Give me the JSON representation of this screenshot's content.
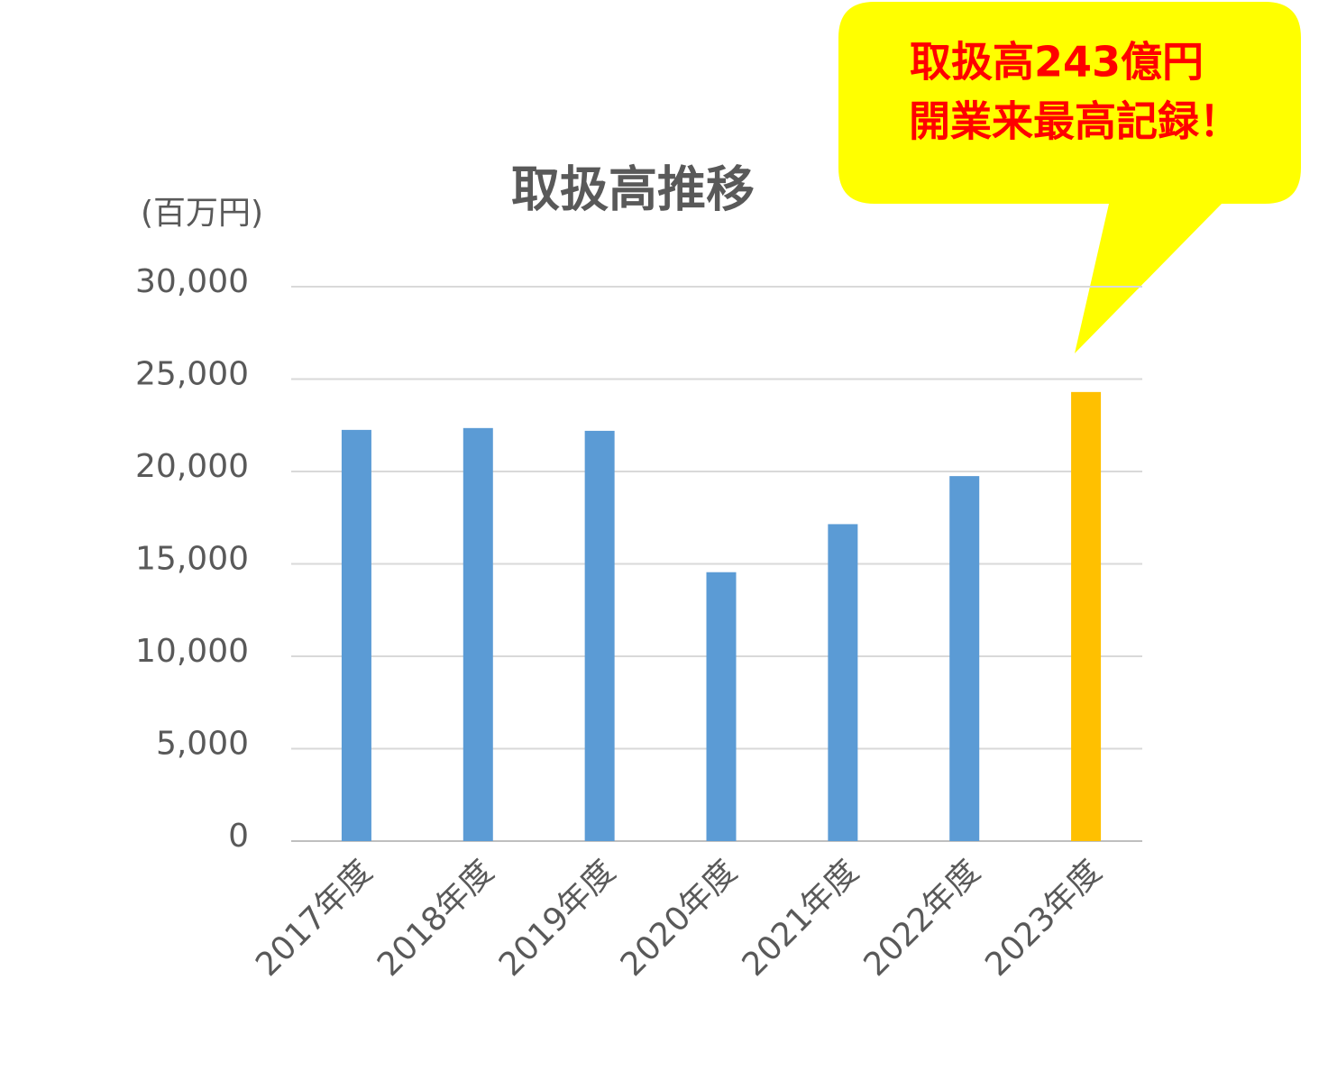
{
  "chart_data": {
    "type": "bar",
    "title": "取扱高推移",
    "y_label": "(百万円)",
    "categories": [
      "2017年度",
      "2018年度",
      "2019年度",
      "2020年度",
      "2021年度",
      "2022年度",
      "2023年度"
    ],
    "values": [
      22250,
      22350,
      22200,
      14550,
      17150,
      19750,
      24300
    ],
    "colors": [
      "#5b9bd5",
      "#5b9bd5",
      "#5b9bd5",
      "#5b9bd5",
      "#5b9bd5",
      "#5b9bd5",
      "#ffc000"
    ],
    "ylim": [
      0,
      30000
    ],
    "yticks": [
      0,
      {
        "value": 5000,
        "label": "5,000"
      },
      {
        "value": 10000,
        "label": "10,000"
      },
      {
        "value": 15000,
        "label": "15,000"
      },
      {
        "value": 20000,
        "label": "20,000"
      },
      {
        "value": 25000,
        "label": "25,000"
      },
      {
        "value": 30000,
        "label": "30,000"
      }
    ],
    "grid": true,
    "annotations": [
      "取扱高243億円",
      "開業来最高記録！"
    ]
  }
}
